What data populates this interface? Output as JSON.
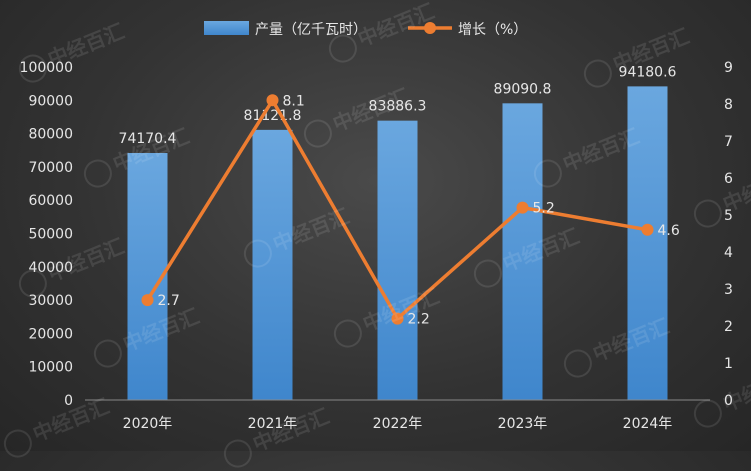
{
  "chart_data": {
    "type": "bar+line",
    "categories": [
      "2020年",
      "2021年",
      "2022年",
      "2023年",
      "2024年"
    ],
    "series": [
      {
        "name": "产量（亿千瓦时）",
        "type": "bar",
        "axis": "left",
        "values": [
          74170.4,
          81121.8,
          83886.3,
          89090.8,
          94180.6
        ],
        "labels": [
          "74170.4",
          "81121.8",
          "83886.3",
          "89090.8",
          "94180.6"
        ]
      },
      {
        "name": "增长（%）",
        "type": "line",
        "axis": "right",
        "values": [
          2.7,
          8.1,
          2.2,
          5.2,
          4.6
        ],
        "labels": [
          "2.7",
          "8.1",
          "2.2",
          "5.2",
          "4.6"
        ]
      }
    ],
    "y_left": {
      "lim": [
        0,
        100000
      ],
      "ticks": [
        "0",
        "10000",
        "20000",
        "30000",
        "40000",
        "50000",
        "60000",
        "70000",
        "80000",
        "90000",
        "100000"
      ]
    },
    "y_right": {
      "lim": [
        0,
        9
      ],
      "ticks": [
        "0",
        "1",
        "2",
        "3",
        "4",
        "5",
        "6",
        "7",
        "8",
        "9"
      ]
    },
    "legend": "top-center",
    "grid": false,
    "colors": {
      "bar": "#5b9bd5",
      "line": "#ed7d31",
      "text": "#e6e6e6"
    }
  },
  "watermark": "中经百汇"
}
